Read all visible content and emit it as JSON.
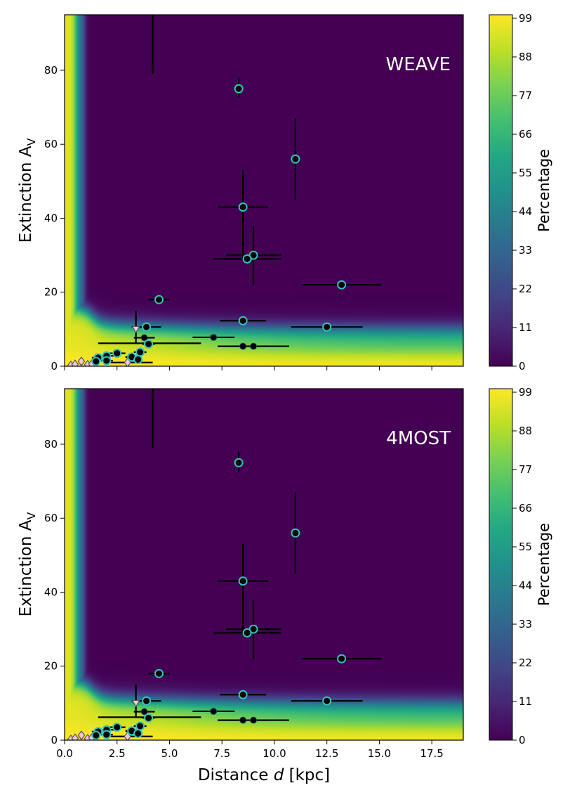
{
  "chart_data": [
    {
      "type": "heatmap",
      "title": "WEAVE",
      "xlabel": "",
      "ylabel": "Extinction A_V",
      "ylabel_main": "Extinction A",
      "ylabel_sub": "V",
      "xlim": [
        0,
        19
      ],
      "ylim": [
        0,
        95
      ],
      "x_ticks": [
        0.0,
        2.5,
        5.0,
        7.5,
        10.0,
        12.5,
        15.0,
        17.5
      ],
      "x_tick_labels": [],
      "y_ticks": [
        0,
        20,
        40,
        60,
        80
      ],
      "y_tick_labels": [
        "0",
        "20",
        "40",
        "60",
        "80"
      ],
      "colorbar": {
        "label": "Percentage",
        "range": [
          0,
          100
        ],
        "ticks": [
          0,
          11,
          22,
          33,
          44,
          55,
          66,
          77,
          88,
          99
        ],
        "tick_labels": [
          "0",
          "11",
          "22",
          "33",
          "44",
          "55",
          "66",
          "77",
          "88",
          "99"
        ]
      },
      "heatmap_model": "percentage high in low-extinction region near origin, dropping to ~0 for A_V above ~12-15 and d above ~1 kpc"
    },
    {
      "type": "heatmap",
      "title": "4MOST",
      "xlabel": "Distance d [kpc]",
      "xlabel_pre": "Distance ",
      "xlabel_var": "d",
      "xlabel_post": " [kpc]",
      "ylabel": "Extinction A_V",
      "ylabel_main": "Extinction A",
      "ylabel_sub": "V",
      "xlim": [
        0,
        19
      ],
      "ylim": [
        0,
        95
      ],
      "x_ticks": [
        0.0,
        2.5,
        5.0,
        7.5,
        10.0,
        12.5,
        15.0,
        17.5
      ],
      "x_tick_labels": [
        "0.0",
        "2.5",
        "5.0",
        "7.5",
        "10.0",
        "12.5",
        "15.0",
        "17.5"
      ],
      "y_ticks": [
        0,
        20,
        40,
        60,
        80
      ],
      "y_tick_labels": [
        "0",
        "20",
        "40",
        "60",
        "80"
      ],
      "colorbar": {
        "label": "Percentage",
        "range": [
          0,
          100
        ],
        "ticks": [
          0,
          11,
          22,
          33,
          44,
          55,
          66,
          77,
          88,
          99
        ],
        "tick_labels": [
          "0",
          "11",
          "22",
          "33",
          "44",
          "55",
          "66",
          "77",
          "88",
          "99"
        ]
      },
      "heatmap_model": "percentage high in low-extinction region near origin, dropping to ~0 for A_V above ~12-15 and d above ~1 kpc"
    }
  ],
  "sources": {
    "cyan": [
      {
        "d": 8.3,
        "av": 75.0,
        "xerr": 0.2,
        "yerr": [
          2.5,
          3.0
        ]
      },
      {
        "d": 11.0,
        "av": 56.0,
        "xerr": 0.1,
        "yerr": [
          11.0,
          11.0
        ]
      },
      {
        "d": 8.5,
        "av": 43.0,
        "xerr": 1.2,
        "yerr": [
          14.0,
          10.0
        ]
      },
      {
        "d": 9.0,
        "av": 30.0,
        "xerr": 1.3,
        "yerr": [
          8.0,
          8.0
        ]
      },
      {
        "d": 8.7,
        "av": 29.0,
        "xerr": 1.6,
        "yerr": [
          0,
          0
        ]
      },
      {
        "d": 13.2,
        "av": 22.0,
        "xerr": 1.9,
        "yerr": [
          0,
          0
        ]
      },
      {
        "d": 4.5,
        "av": 18.0,
        "xerr": 0.5,
        "yerr": [
          0,
          0
        ]
      },
      {
        "d": 8.5,
        "av": 12.3,
        "xerr": 1.1,
        "yerr": [
          0,
          0
        ]
      },
      {
        "d": 12.5,
        "av": 10.6,
        "xerr": 1.7,
        "yerr": [
          0,
          0
        ]
      },
      {
        "d": 3.9,
        "av": 10.6,
        "xerr": 0.7,
        "yerr": [
          0,
          0
        ]
      },
      {
        "d": 4.0,
        "av": 6.0,
        "xerr": 0.3,
        "yerr": [
          0,
          0
        ]
      },
      {
        "d": 3.6,
        "av": 3.8,
        "xerr": 0.3,
        "yerr": [
          0,
          0
        ]
      },
      {
        "d": 2.5,
        "av": 3.5,
        "xerr": 0.4,
        "yerr": [
          0,
          0
        ]
      },
      {
        "d": 2.0,
        "av": 2.8,
        "xerr": 0.4,
        "yerr": [
          0,
          0
        ]
      },
      {
        "d": 1.6,
        "av": 2.3,
        "xerr": 0.3,
        "yerr": [
          0,
          0
        ]
      },
      {
        "d": 3.2,
        "av": 2.5,
        "xerr": 0.3,
        "yerr": [
          0,
          0
        ]
      },
      {
        "d": 3.5,
        "av": 1.8,
        "xerr": 0.2,
        "yerr": [
          0,
          0
        ]
      },
      {
        "d": 2.0,
        "av": 1.5,
        "xerr": 0.3,
        "yerr": [
          0,
          0
        ]
      },
      {
        "d": 1.5,
        "av": 1.3,
        "xerr": 0.2,
        "yerr": [
          0,
          0
        ]
      }
    ],
    "black": [
      {
        "d": 3.8,
        "av": 7.7,
        "xerr": 0.5,
        "yerr": [
          0,
          0
        ]
      },
      {
        "d": 7.1,
        "av": 7.8,
        "xerr": 1.0,
        "yerr": [
          0,
          0
        ]
      },
      {
        "d": 8.5,
        "av": 5.4,
        "xerr": 1.2,
        "yerr": [
          0,
          0
        ]
      },
      {
        "d": 9.0,
        "av": 5.4,
        "xerr": 1.7,
        "yerr": [
          0,
          0
        ]
      }
    ],
    "pink_triangle": [
      {
        "d": 3.4,
        "av": 10.0,
        "yerr": [
          4.0,
          5.0
        ]
      }
    ],
    "pink_diamond": [
      {
        "d": 0.3,
        "av": 0.2
      },
      {
        "d": 0.5,
        "av": 0.5
      },
      {
        "d": 0.8,
        "av": 1.3
      },
      {
        "d": 1.1,
        "av": 0.4
      },
      {
        "d": 1.3,
        "av": 0.6
      },
      {
        "d": 1.5,
        "av": 0.8
      },
      {
        "d": 3.0,
        "av": 1.0
      }
    ],
    "extra_errorbars": [
      {
        "d": 4.2,
        "av": 95.0,
        "yerr": [
          16.0,
          0
        ]
      },
      {
        "d": 4.0,
        "av": 6.2,
        "xerr": [
          2.4,
          2.5
        ]
      },
      {
        "d": 3.6,
        "av": 1.0,
        "xerr": [
          1.4,
          0.6
        ]
      }
    ]
  },
  "colors": {
    "cyan_edge": "#35c4c0",
    "marker_fill": "#000000",
    "pink": "#f4c6d8",
    "pink_edge": "#555555",
    "errorbar": "#000000"
  }
}
